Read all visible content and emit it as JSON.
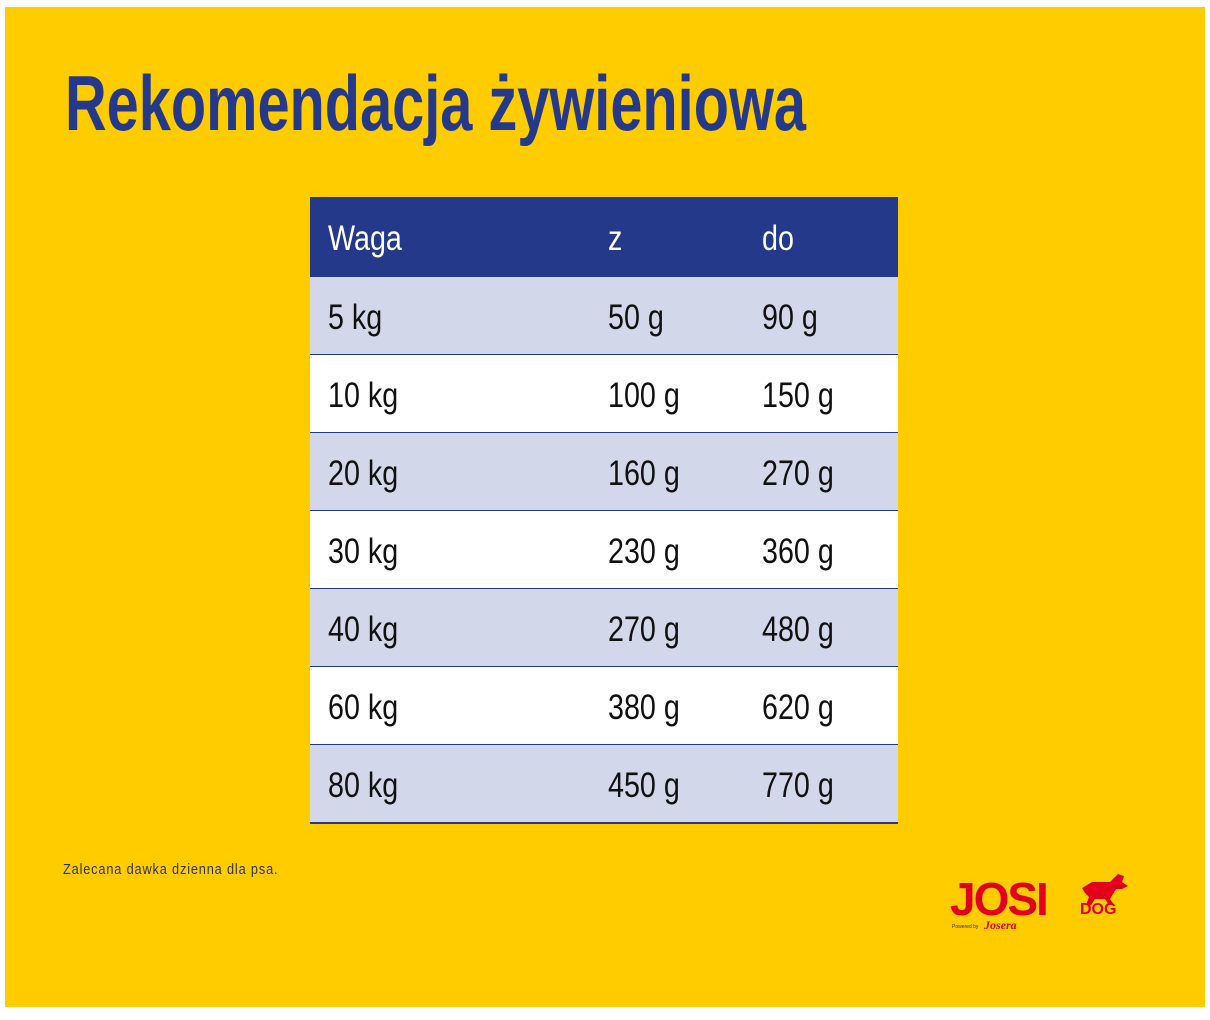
{
  "title": "Rekomendacja żywieniowa",
  "table": {
    "header": [
      "Waga",
      "z",
      "do"
    ],
    "rows": [
      [
        "5 kg",
        "50 g",
        "90 g"
      ],
      [
        "10 kg",
        "100 g",
        "150 g"
      ],
      [
        "20 kg",
        "160 g",
        "270 g"
      ],
      [
        "30 kg",
        "230 g",
        "360 g"
      ],
      [
        "40 kg",
        "270 g",
        "480 g"
      ],
      [
        "60 kg",
        "380 g",
        "620 g"
      ],
      [
        "80 kg",
        "450 g",
        "770 g"
      ]
    ]
  },
  "footnote": "Zalecana dawka dzienna dla psa.",
  "logo": {
    "brand": "JOSI",
    "sub": "DOG",
    "powered": "Powered by",
    "maker": "Josera"
  }
}
